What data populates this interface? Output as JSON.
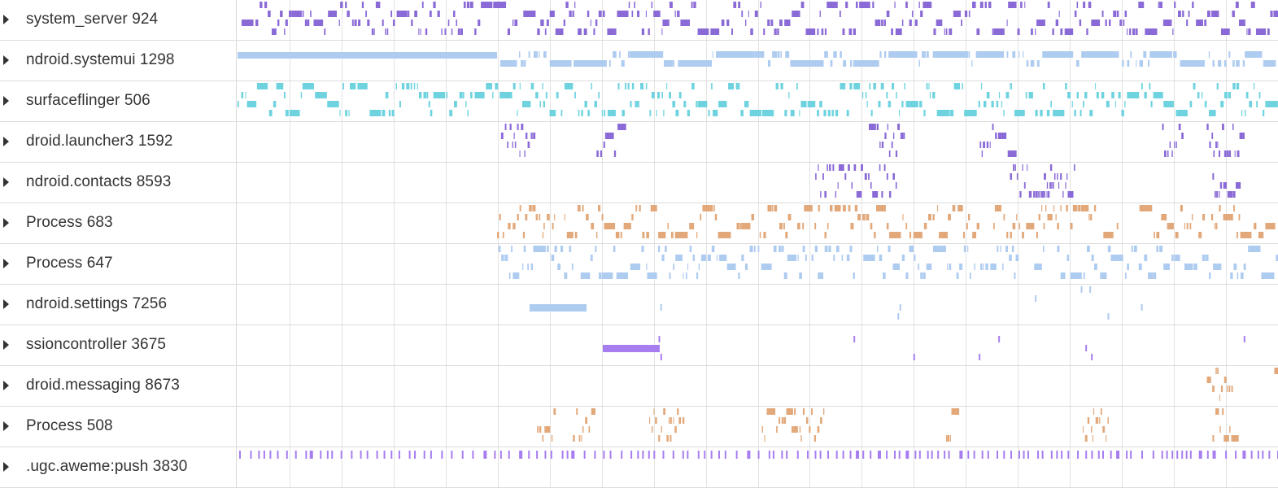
{
  "tracks": [
    {
      "name": "system_server 924",
      "color": "#8a6ad6",
      "pattern": "dense",
      "start_fraction": 0.0,
      "coverage": 0.98
    },
    {
      "name": "ndroid.systemui 1298",
      "color": "#aecbf0",
      "pattern": "bars",
      "start_fraction": 0.0,
      "coverage": 1.0
    },
    {
      "name": "surfaceflinger 506",
      "color": "#6ed3df",
      "pattern": "dense",
      "start_fraction": 0.0,
      "coverage": 1.0
    },
    {
      "name": "droid.launcher3 1592",
      "color": "#8a6ad6",
      "pattern": "clusters",
      "start_fraction": 0.25,
      "coverage": 0.35
    },
    {
      "name": "ndroid.contacts 8593",
      "color": "#8a6ad6",
      "pattern": "clusters",
      "start_fraction": 0.53,
      "coverage": 0.25
    },
    {
      "name": "Process 683",
      "color": "#e2a87a",
      "pattern": "dense",
      "start_fraction": 0.25,
      "coverage": 0.9
    },
    {
      "name": "Process 647",
      "color": "#aecbf0",
      "pattern": "dense",
      "start_fraction": 0.25,
      "coverage": 0.9
    },
    {
      "name": "ndroid.settings 7256",
      "color": "#aecbf0",
      "pattern": "sparse",
      "start_fraction": 0.25,
      "coverage": 0.1
    },
    {
      "name": "ssioncontroller 3675",
      "color": "#a77ef0",
      "pattern": "sparse",
      "start_fraction": 0.32,
      "coverage": 0.1
    },
    {
      "name": "droid.messaging 8673",
      "color": "#e2a87a",
      "pattern": "clusters",
      "start_fraction": 0.93,
      "coverage": 0.06
    },
    {
      "name": "Process 508",
      "color": "#e2a87a",
      "pattern": "clusters",
      "start_fraction": 0.25,
      "coverage": 0.5
    },
    {
      "name": ".ugc.aweme:push 3830",
      "color": "#a77ef0",
      "pattern": "ticks",
      "start_fraction": 0.0,
      "coverage": 1.0
    }
  ],
  "grid_color": "#e3e3e3",
  "grid_lines": 20
}
